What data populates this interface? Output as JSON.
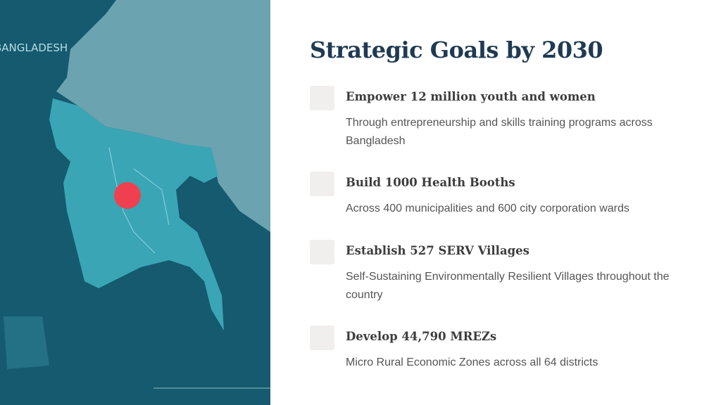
{
  "map": {
    "country_label": "BANGLADESH",
    "marker_color": "#f0404f",
    "water_color": "#155a6e",
    "land_color": "#3aa5b5",
    "neighbor_color": "#6ba3b0"
  },
  "title": "Strategic Goals by 2030",
  "goals": [
    {
      "heading": "Empower 12 million youth and women",
      "description": "Through entrepreneurship and skills training programs across Bangladesh"
    },
    {
      "heading": "Build 1000 Health Booths",
      "description": "Across 400 municipalities and 600 city corporation wards"
    },
    {
      "heading": "Establish 527 SERV Villages",
      "description": "Self-Sustaining Environmentally Resilient Villages throughout the country"
    },
    {
      "heading": "Develop 44,790 MREZs",
      "description": "Micro Rural Economic Zones across all 64 districts"
    }
  ]
}
